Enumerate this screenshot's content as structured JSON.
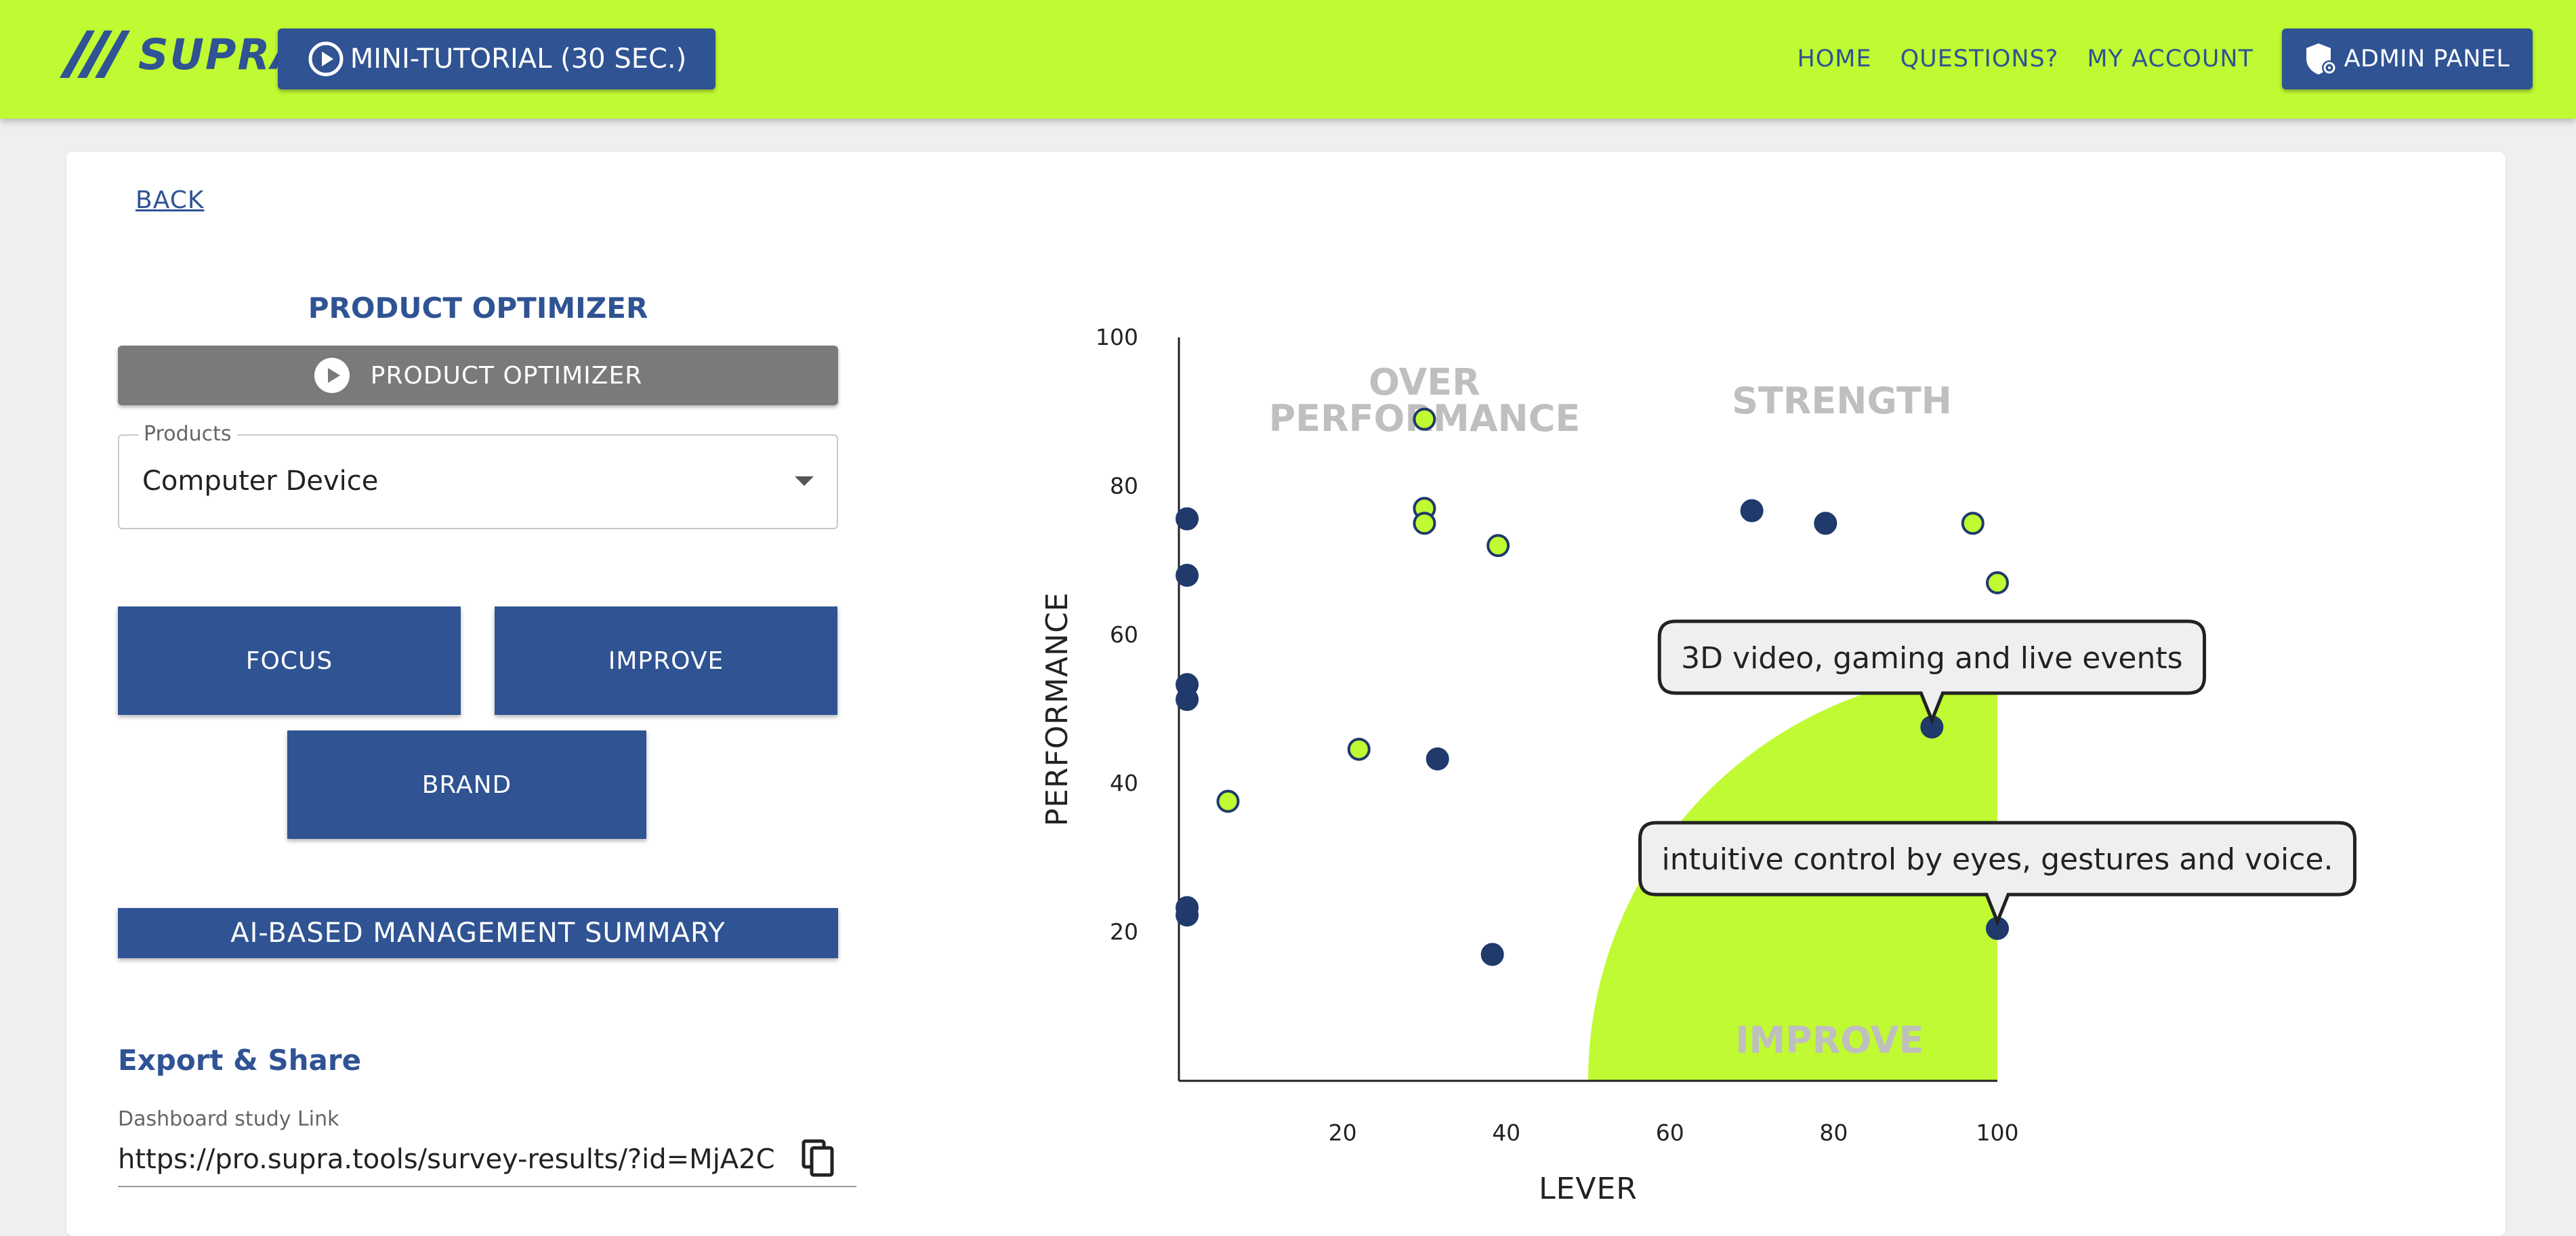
{
  "header": {
    "logo_text": "SUPRA",
    "tutorial_label": "MINI-TUTORIAL (30 SEC.)",
    "nav": [
      "HOME",
      "QUESTIONS?",
      "MY ACCOUNT"
    ],
    "admin_label": "ADMIN PANEL",
    "colors": {
      "bar": "#c0fa32",
      "primary": "#2f5393"
    }
  },
  "page": {
    "back_label": "BACK",
    "section_title": "PRODUCT OPTIMIZER",
    "optimizer_button": "PRODUCT OPTIMIZER",
    "products_label": "Products",
    "products_value": "Computer Device",
    "buttons": {
      "focus": "FOCUS",
      "improve": "IMPROVE",
      "brand": "BRAND"
    },
    "summary_button": "AI-BASED MANAGEMENT SUMMARY",
    "export_title": "Export & Share",
    "link_label": "Dashboard study Link",
    "link_value": "https://pro.supra.tools/survey-results/?id=MjA2C"
  },
  "chart_data": {
    "type": "scatter",
    "xlabel": "LEVER",
    "ylabel": "PERFORMANCE",
    "xlim": [
      0,
      100
    ],
    "ylim": [
      0,
      100
    ],
    "xticks": [
      20,
      40,
      60,
      80,
      100
    ],
    "yticks": [
      20,
      40,
      60,
      80,
      100
    ],
    "quadrant_labels": {
      "over": "OVER PERFORMANCE",
      "strength": "STRENGTH",
      "improve": "IMPROVE"
    },
    "improve_region_color": "#c0fa32",
    "series": [
      {
        "color": "#1f3a6b",
        "values": [
          [
            1,
            75.6
          ],
          [
            1,
            68
          ],
          [
            1,
            53.3
          ],
          [
            1,
            51.3
          ],
          [
            1,
            23.3
          ],
          [
            1,
            22.3
          ],
          [
            31.6,
            43.3
          ],
          [
            38.3,
            17
          ],
          [
            70,
            76.7
          ],
          [
            79,
            75
          ],
          [
            92,
            47.6
          ],
          [
            100,
            20.5
          ]
        ]
      },
      {
        "color": "#c0fa32",
        "values": [
          [
            6,
            37.6
          ],
          [
            22,
            44.6
          ],
          [
            30,
            89
          ],
          [
            30,
            77
          ],
          [
            30,
            75
          ],
          [
            39,
            72
          ],
          [
            97,
            75
          ],
          [
            100,
            67
          ]
        ]
      }
    ],
    "annotations": [
      {
        "text": "3D video, gaming and live events",
        "x": 92,
        "y": 47.6
      },
      {
        "text": "intuitive control by eyes, gestures and voice.",
        "x": 100,
        "y": 20.5
      }
    ]
  }
}
